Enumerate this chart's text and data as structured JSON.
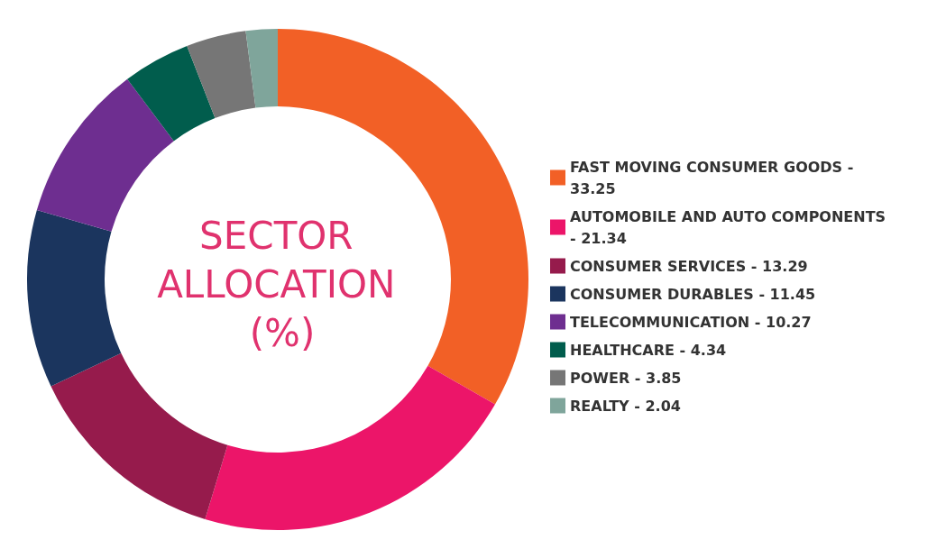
{
  "chart_data": {
    "type": "donut",
    "title": "SECTOR ALLOCATION (%)",
    "legend": "right",
    "categories": [
      "FAST MOVING CONSUMER GOODS - 33.25",
      "AUTOMOBILE AND AUTO COMPONENTS - 21.34",
      "CONSUMER SERVICES - 13.29",
      "CONSUMER DURABLES - 11.45",
      "TELECOMMUNICATION - 10.27",
      "HEALTHCARE - 4.34",
      "POWER - 3.85",
      "REALTY - 2.04"
    ],
    "values": [
      33.25,
      21.34,
      13.29,
      11.45,
      10.27,
      4.34,
      3.85,
      2.04
    ],
    "colors": [
      "#f26026",
      "#ec1569",
      "#961b4c",
      "#1b355e",
      "#6e2e90",
      "#015d4d",
      "#767676",
      "#7fa59b"
    ]
  }
}
